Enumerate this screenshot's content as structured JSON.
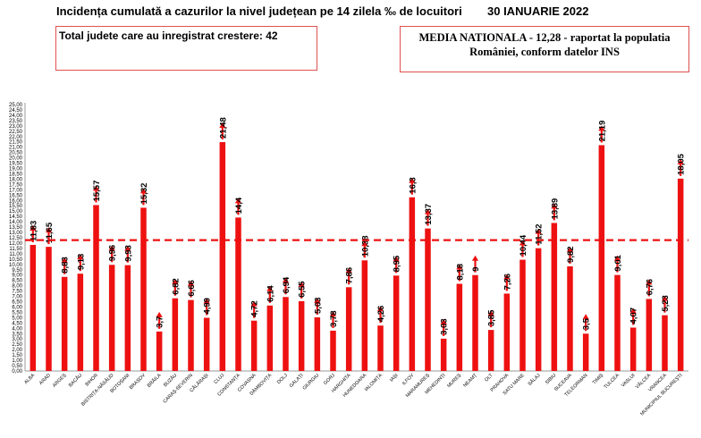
{
  "header": {
    "title": "Incidența cumulată a cazurilor la nivel județean pe 14 zilela ‰ de locuitori",
    "date": "30 IANUARIE 2022"
  },
  "boxes": {
    "increase_note": "Total judete care au inregistrat crestere: 42",
    "national_line1": "MEDIA NATIONALA - 12,28 -  raportat la populatia",
    "national_line2": "României, conform datelor INS"
  },
  "colors": {
    "bar": "#ee1111",
    "arrow": "#ee1111",
    "reference_line": "#ee1111"
  },
  "chart_data": {
    "type": "bar",
    "categories": [
      "ALBA",
      "ARAD",
      "ARGEȘ",
      "BACĂU",
      "BIHOR",
      "BISTRIȚA-NĂSĂUD",
      "BOTOȘANI",
      "BRAȘOV",
      "BRĂILA",
      "BUZĂU",
      "CARAȘ-SEVERIN",
      "CĂLĂRAȘI",
      "CLUJ",
      "CONSTANȚA",
      "COVASNA",
      "DÂMBOVIȚA",
      "DOLJ",
      "GALAȚI",
      "GIURGIU",
      "GORJ",
      "HARGHITA",
      "HUNEDOARA",
      "IALOMIȚA",
      "IAȘI",
      "ILFOV",
      "MARAMUREȘ",
      "MEHEDINȚI",
      "MUREȘ",
      "NEAMȚ",
      "OLT",
      "PRAHOVA",
      "SATU MARE",
      "SĂLAJ",
      "SIBIU",
      "SUCEAVA",
      "TELEORMAN",
      "TIMIȘ",
      "TULCEA",
      "VASLUI",
      "VÂLCEA",
      "VRANCEA",
      "MUNICIPIUL BUCUREȘTI"
    ],
    "values": [
      11.83,
      11.65,
      8.83,
      9.13,
      15.57,
      9.96,
      9.93,
      15.32,
      3.7,
      6.82,
      6.66,
      4.99,
      21.48,
      14.4,
      4.72,
      6.14,
      6.94,
      6.55,
      5.03,
      3.78,
      7.86,
      10.38,
      4.26,
      8.95,
      16.3,
      13.37,
      3.03,
      8.18,
      9,
      3.85,
      7.26,
      10.44,
      11.52,
      13.89,
      9.82,
      3.5,
      21.19,
      9.01,
      4.07,
      6.76,
      5.23,
      18.05
    ],
    "data_labels": [
      "11,83",
      "11,65",
      "8,83",
      "9,13",
      "15,57",
      "9,96",
      "9,93",
      "15,32",
      "3,7",
      "6,82",
      "6,66",
      "4,99",
      "21,48",
      "14,4",
      "4,72",
      "6,14",
      "6,94",
      "6,55",
      "5,03",
      "3,78",
      "7,86",
      "10,38",
      "4,26",
      "8,95",
      "16,3",
      "13,37",
      "3,03",
      "8,18",
      "9",
      "3,85",
      "7,26",
      "10,44",
      "11,52",
      "13,89",
      "9,82",
      "3,5",
      "21,19",
      "9,01",
      "4,07",
      "6,76",
      "5,23",
      "18,05"
    ],
    "trend": [
      "up",
      "up",
      "up",
      "up",
      "up",
      "up",
      "up",
      "up",
      "up",
      "up",
      "up",
      "up",
      "up",
      "up",
      "up",
      "up",
      "up",
      "up",
      "up",
      "up",
      "up",
      "up",
      "up",
      "up",
      "up",
      "up",
      "up",
      "up",
      "up",
      "up",
      "up",
      "up",
      "up",
      "up",
      "up",
      "up",
      "up",
      "up",
      "up",
      "up",
      "up",
      "up"
    ],
    "reference_line": 12.28,
    "ylim": [
      0,
      25
    ],
    "ytick_step": 0.5,
    "ytick_labels": [
      "0,00",
      "0,50",
      "1,00",
      "1,50",
      "2,00",
      "2,50",
      "3,00",
      "3,50",
      "4,00",
      "4,50",
      "5,00",
      "5,50",
      "6,00",
      "6,50",
      "7,00",
      "7,50",
      "8,00",
      "8,50",
      "9,00",
      "9,50",
      "10,00",
      "10,50",
      "11,00",
      "11,50",
      "12,00",
      "12,50",
      "13,00",
      "13,50",
      "14,00",
      "14,50",
      "15,00",
      "15,50",
      "16,00",
      "16,50",
      "17,00",
      "17,50",
      "18,00",
      "18,50",
      "19,00",
      "19,50",
      "20,00",
      "20,50",
      "21,00",
      "21,50",
      "22,00",
      "22,50",
      "23,00",
      "23,50",
      "24,00",
      "24,50",
      "25,00"
    ],
    "xlabel": "",
    "ylabel": ""
  }
}
